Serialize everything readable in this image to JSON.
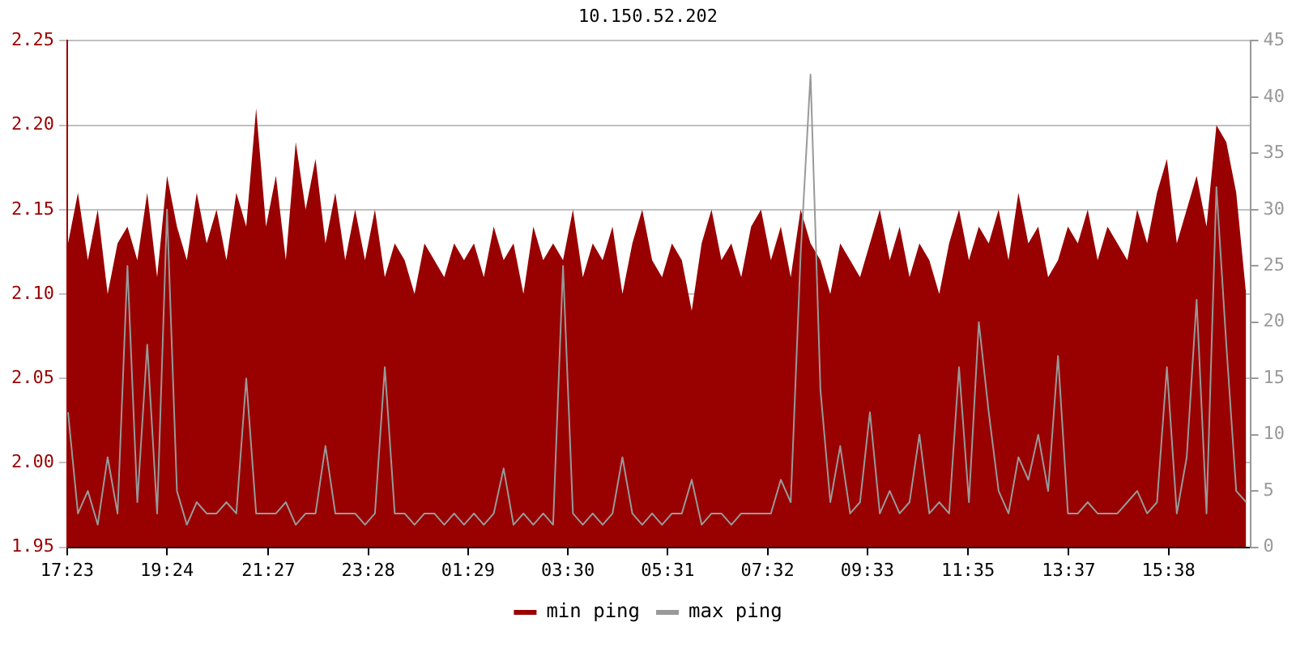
{
  "chart_data": {
    "type": "line",
    "title": "10.150.52.202",
    "legend": "bottom",
    "grid": "y",
    "marker": "none",
    "xlim": [
      "--01-01T17:23",
      "--01-02T17:17"
    ],
    "xticks": [
      {
        "value": "--01-01T17:23",
        "label": "17:23"
      },
      {
        "value": "--01-01T19:24",
        "label": "19:24"
      },
      {
        "value": "--01-01T21:27",
        "label": "21:27"
      },
      {
        "value": "--01-01T23:28",
        "label": "23:28"
      },
      {
        "value": "--01-02T01:29",
        "label": "01:29"
      },
      {
        "value": "--01-02T03:30",
        "label": "03:30"
      },
      {
        "value": "--01-02T05:31",
        "label": "05:31"
      },
      {
        "value": "--01-02T07:32",
        "label": "07:32"
      },
      {
        "value": "--01-02T09:33",
        "label": "09:33"
      },
      {
        "value": "--01-02T11:35",
        "label": "11:35"
      },
      {
        "value": "--01-02T13:37",
        "label": "13:37"
      },
      {
        "value": "--01-02T15:38",
        "label": "15:38"
      }
    ],
    "ylim": [
      1.95,
      2.25
    ],
    "yticks": [
      1.95,
      {
        "value": 2.0,
        "label": "2.00"
      },
      2.05,
      {
        "value": 2.1,
        "label": "2.10"
      },
      2.15,
      {
        "value": 2.2,
        "label": "2.20"
      },
      2.25
    ],
    "y2lim": [
      0,
      45
    ],
    "y2ticks": [
      0,
      5,
      10,
      15,
      20,
      25,
      30,
      35,
      40,
      45
    ],
    "x": [
      "--01-01T17:24",
      "--01-01T17:36",
      "--01-01T17:48",
      "--01-01T18:00",
      "--01-01T18:12",
      "--01-01T18:24",
      "--01-01T18:36",
      "--01-01T18:48",
      "--01-01T19:00",
      "--01-01T19:12",
      "--01-01T19:24",
      "--01-01T19:36",
      "--01-01T19:48",
      "--01-01T20:00",
      "--01-01T20:12",
      "--01-01T20:24",
      "--01-01T20:36",
      "--01-01T20:48",
      "--01-01T21:00",
      "--01-01T21:12",
      "--01-01T21:24",
      "--01-01T21:36",
      "--01-01T21:48",
      "--01-01T22:00",
      "--01-01T22:12",
      "--01-01T22:24",
      "--01-01T22:36",
      "--01-01T22:48",
      "--01-01T23:00",
      "--01-01T23:12",
      "--01-01T23:24",
      "--01-01T23:36",
      "--01-01T23:48",
      "--01-02T00:00",
      "--01-02T00:12",
      "--01-02T00:24",
      "--01-02T00:36",
      "--01-02T00:48",
      "--01-02T01:00",
      "--01-02T01:12",
      "--01-02T01:24",
      "--01-02T01:36",
      "--01-02T01:48",
      "--01-02T02:00",
      "--01-02T02:12",
      "--01-02T02:24",
      "--01-02T02:36",
      "--01-02T02:48",
      "--01-02T03:00",
      "--01-02T03:12",
      "--01-02T03:24",
      "--01-02T03:36",
      "--01-02T03:48",
      "--01-02T04:00",
      "--01-02T04:12",
      "--01-02T04:24",
      "--01-02T04:36",
      "--01-02T04:48",
      "--01-02T05:00",
      "--01-02T05:12",
      "--01-02T05:24",
      "--01-02T05:36",
      "--01-02T05:48",
      "--01-02T06:00",
      "--01-02T06:12",
      "--01-02T06:24",
      "--01-02T06:36",
      "--01-02T06:48",
      "--01-02T07:00",
      "--01-02T07:12",
      "--01-02T07:24",
      "--01-02T07:36",
      "--01-02T07:48",
      "--01-02T08:00",
      "--01-02T08:12",
      "--01-02T08:24",
      "--01-02T08:36",
      "--01-02T08:48",
      "--01-02T09:00",
      "--01-02T09:12",
      "--01-02T09:24",
      "--01-02T09:36",
      "--01-02T09:48",
      "--01-02T10:00",
      "--01-02T10:12",
      "--01-02T10:24",
      "--01-02T10:36",
      "--01-02T10:48",
      "--01-02T11:00",
      "--01-02T11:12",
      "--01-02T11:24",
      "--01-02T11:36",
      "--01-02T11:48",
      "--01-02T12:00",
      "--01-02T12:12",
      "--01-02T12:24",
      "--01-02T12:36",
      "--01-02T12:48",
      "--01-02T13:00",
      "--01-02T13:12",
      "--01-02T13:24",
      "--01-02T13:36",
      "--01-02T13:48",
      "--01-02T14:00",
      "--01-02T14:12",
      "--01-02T14:24",
      "--01-02T14:36",
      "--01-02T14:48",
      "--01-02T15:00",
      "--01-02T15:12",
      "--01-02T15:24",
      "--01-02T15:36",
      "--01-02T15:48",
      "--01-02T16:00",
      "--01-02T16:12",
      "--01-02T16:24",
      "--01-02T16:36",
      "--01-02T16:48",
      "--01-02T17:00",
      "--01-02T17:12"
    ],
    "series": [
      {
        "name": "min ping",
        "type": "area",
        "color": "#990000",
        "values": [
          2.13,
          2.16,
          2.12,
          2.15,
          2.1,
          2.13,
          2.14,
          2.12,
          2.16,
          2.11,
          2.17,
          2.14,
          2.12,
          2.16,
          2.13,
          2.15,
          2.12,
          2.16,
          2.14,
          2.21,
          2.14,
          2.17,
          2.12,
          2.19,
          2.15,
          2.18,
          2.13,
          2.16,
          2.12,
          2.15,
          2.12,
          2.15,
          2.11,
          2.13,
          2.12,
          2.1,
          2.13,
          2.12,
          2.11,
          2.13,
          2.12,
          2.13,
          2.11,
          2.14,
          2.12,
          2.13,
          2.1,
          2.14,
          2.12,
          2.13,
          2.12,
          2.15,
          2.11,
          2.13,
          2.12,
          2.14,
          2.1,
          2.13,
          2.15,
          2.12,
          2.11,
          2.13,
          2.12,
          2.09,
          2.13,
          2.15,
          2.12,
          2.13,
          2.11,
          2.14,
          2.15,
          2.12,
          2.14,
          2.11,
          2.15,
          2.13,
          2.12,
          2.1,
          2.13,
          2.12,
          2.11,
          2.13,
          2.15,
          2.12,
          2.14,
          2.11,
          2.13,
          2.12,
          2.1,
          2.13,
          2.15,
          2.12,
          2.14,
          2.13,
          2.15,
          2.12,
          2.16,
          2.13,
          2.14,
          2.11,
          2.12,
          2.14,
          2.13,
          2.15,
          2.12,
          2.14,
          2.13,
          2.12,
          2.15,
          2.13,
          2.16,
          2.18,
          2.13,
          2.15,
          2.17,
          2.14,
          2.2,
          2.19,
          2.16,
          2.1
        ]
      },
      {
        "name": "max ping",
        "type": "line",
        "axis": "y2",
        "color": "#999999",
        "values": [
          12,
          3,
          5,
          2,
          8,
          3,
          25,
          4,
          18,
          3,
          30,
          5,
          2,
          4,
          3,
          3,
          4,
          3,
          15,
          3,
          3,
          3,
          4,
          2,
          3,
          3,
          9,
          3,
          3,
          3,
          2,
          3,
          16,
          3,
          3,
          2,
          3,
          3,
          2,
          3,
          2,
          3,
          2,
          3,
          7,
          2,
          3,
          2,
          3,
          2,
          25,
          3,
          2,
          3,
          2,
          3,
          8,
          3,
          2,
          3,
          2,
          3,
          3,
          6,
          2,
          3,
          3,
          2,
          3,
          3,
          3,
          3,
          6,
          4,
          26,
          42,
          14,
          4,
          9,
          3,
          4,
          12,
          3,
          5,
          3,
          4,
          10,
          3,
          4,
          3,
          16,
          4,
          20,
          12,
          5,
          3,
          8,
          6,
          10,
          5,
          17,
          3,
          3,
          4,
          3,
          3,
          3,
          4,
          5,
          3,
          4,
          16,
          3,
          8,
          22,
          3,
          32,
          18,
          5,
          4
        ]
      }
    ]
  }
}
